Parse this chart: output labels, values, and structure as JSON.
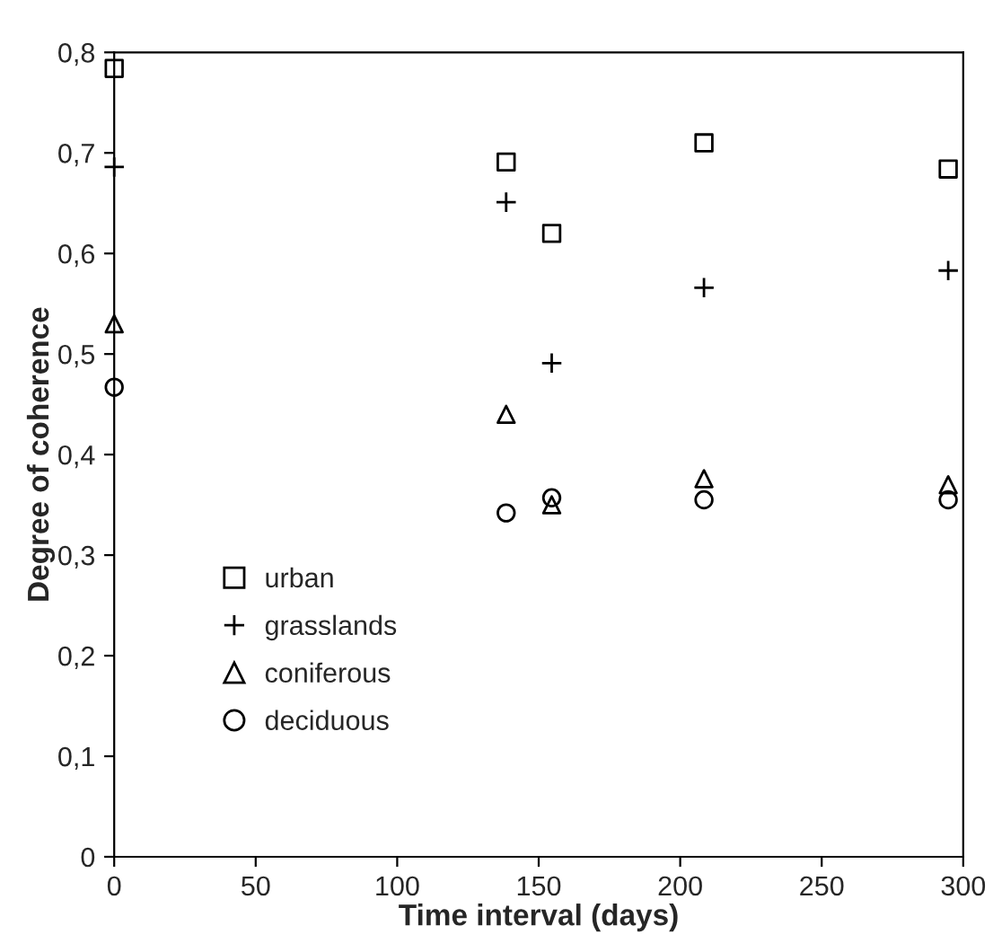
{
  "chart_data": {
    "type": "scatter",
    "xlabel": "Time interval (days)",
    "ylabel": "Degree of coherence",
    "xlim": [
      0,
      300
    ],
    "xticks": [
      0,
      50,
      100,
      150,
      200,
      250,
      300
    ],
    "ylim": [
      0,
      0.8
    ],
    "yticks": [
      {
        "value": 0,
        "label": "0"
      },
      {
        "value": 0.1,
        "label": "0,1"
      },
      {
        "value": 0.2,
        "label": "0,2"
      },
      {
        "value": 0.3,
        "label": "0,3"
      },
      {
        "value": 0.4,
        "label": "0,4"
      },
      {
        "value": 0.5,
        "label": "0,5"
      },
      {
        "value": 0.6,
        "label": "0,6"
      },
      {
        "value": 0.7,
        "label": "0,7"
      },
      {
        "value": 0.8,
        "label": "0,8"
      }
    ],
    "x": [
      0,
      138.5,
      154.6,
      208.4,
      294.7
    ],
    "grid": false,
    "legend": "bottom left",
    "series": [
      {
        "name": "urban",
        "color": "#000000",
        "marker": "square",
        "values": [
          0.784,
          0.691,
          0.62,
          0.71,
          0.684
        ]
      },
      {
        "name": "grasslands",
        "color": "#000000",
        "marker": "cross",
        "values": [
          0.686,
          0.651,
          0.491,
          0.566,
          0.583
        ]
      },
      {
        "name": "coniferous",
        "color": "#000000",
        "marker": "triangle",
        "values": [
          0.53,
          0.44,
          0.35,
          0.376,
          0.37
        ]
      },
      {
        "name": "deciduous",
        "color": "#000000",
        "marker": "circle",
        "values": [
          0.467,
          0.342,
          0.357,
          0.355,
          0.355
        ]
      }
    ]
  }
}
